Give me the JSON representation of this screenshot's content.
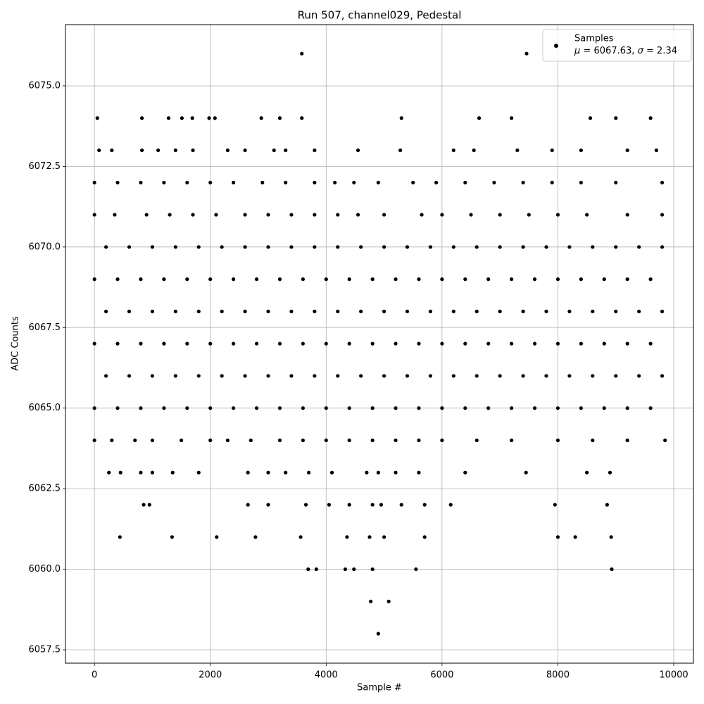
{
  "chart_data": {
    "type": "scatter",
    "title": "Run 507, channel029, Pedestal",
    "x_label": "Sample #",
    "y_label": "ADC Counts",
    "legend_stats": "μ = 6067.63, σ = 2.34",
    "legend_position": "upper right",
    "grid": true,
    "xlim": [
      -500,
      10340
    ],
    "ylim": [
      6057.085,
      6076.9
    ],
    "xticks": [
      0,
      2000,
      4000,
      6000,
      8000,
      10000
    ],
    "yticks": [
      6057.5,
      {
        "value": 6060,
        "label": "6060.0"
      },
      6062.5,
      {
        "value": 6065,
        "label": "6065.0"
      },
      6067.5,
      {
        "value": 6070,
        "label": "6070.0"
      },
      6072.5,
      {
        "value": 6075,
        "label": "6075.0"
      }
    ],
    "series": [
      {
        "name": "Samples",
        "color": "#000000",
        "x": [
          3580,
          7460,
          50,
          820,
          1280,
          1510,
          1690,
          1980,
          2080,
          2880,
          3200,
          3580,
          5300,
          6640,
          7200,
          8560,
          9000,
          9600,
          80,
          300,
          820,
          1100,
          1400,
          1700,
          2300,
          2600,
          3100,
          3300,
          3800,
          4550,
          5280,
          6200,
          6550,
          7300,
          7900,
          8400,
          9200,
          9700,
          0,
          400,
          800,
          1200,
          1600,
          2000,
          2400,
          2900,
          3300,
          3800,
          4150,
          4480,
          4900,
          5500,
          5900,
          6400,
          6900,
          7400,
          7900,
          8400,
          9000,
          9800,
          0,
          350,
          900,
          1300,
          1700,
          2100,
          2600,
          3000,
          3400,
          3800,
          4200,
          4550,
          5000,
          5650,
          6000,
          6500,
          7000,
          7500,
          8000,
          8500,
          9200,
          9800,
          200,
          600,
          1000,
          1400,
          1800,
          2200,
          2600,
          3000,
          3400,
          3800,
          4200,
          4600,
          5000,
          5400,
          5800,
          6200,
          6600,
          7000,
          7400,
          7800,
          8200,
          8600,
          9000,
          9400,
          9800,
          0,
          400,
          800,
          1200,
          1600,
          2000,
          2400,
          2800,
          3200,
          3600,
          4000,
          4400,
          4800,
          5200,
          5600,
          6000,
          6400,
          6800,
          7200,
          7600,
          8000,
          8400,
          8800,
          9200,
          9600,
          200,
          600,
          1000,
          1400,
          1800,
          2200,
          2600,
          3000,
          3400,
          3800,
          4200,
          4600,
          5000,
          5400,
          5800,
          6200,
          6600,
          7000,
          7400,
          7800,
          8200,
          8600,
          9000,
          9400,
          9800,
          0,
          400,
          800,
          1200,
          1600,
          2000,
          2400,
          2800,
          3200,
          3600,
          4000,
          4400,
          4800,
          5200,
          5600,
          6000,
          6400,
          6800,
          7200,
          7600,
          8000,
          8400,
          8800,
          9200,
          9600,
          200,
          600,
          1000,
          1400,
          1800,
          2200,
          2600,
          3000,
          3400,
          3800,
          4200,
          4600,
          5000,
          5400,
          5800,
          6200,
          6600,
          7000,
          7400,
          7800,
          8200,
          8600,
          9000,
          9400,
          9800,
          0,
          400,
          800,
          1200,
          1600,
          2000,
          2400,
          2800,
          3200,
          3600,
          4000,
          4400,
          4800,
          5200,
          5600,
          6000,
          6400,
          6800,
          7200,
          7600,
          8000,
          8400,
          8800,
          9200,
          9600,
          0,
          300,
          700,
          1000,
          1500,
          2000,
          2300,
          2700,
          3200,
          3600,
          4000,
          4400,
          4800,
          5200,
          5600,
          6000,
          6600,
          7200,
          8000,
          8600,
          9200,
          9850,
          250,
          450,
          800,
          1000,
          1350,
          1800,
          2650,
          3000,
          3300,
          3700,
          4100,
          4700,
          4900,
          5200,
          5600,
          6400,
          7450,
          8500,
          8900,
          850,
          950,
          2650,
          3000,
          3650,
          4050,
          4400,
          4800,
          4950,
          5300,
          5700,
          6150,
          7950,
          8850,
          440,
          1340,
          2110,
          2780,
          3560,
          4360,
          4750,
          5000,
          5700,
          8000,
          8300,
          8920,
          3690,
          3830,
          4330,
          4480,
          4800,
          5550,
          8930,
          4770,
          5080,
          4900
        ],
        "values": [
          6076,
          6076,
          6074,
          6074,
          6074,
          6074,
          6074,
          6074,
          6074,
          6074,
          6074,
          6074,
          6074,
          6074,
          6074,
          6074,
          6074,
          6074,
          6073,
          6073,
          6073,
          6073,
          6073,
          6073,
          6073,
          6073,
          6073,
          6073,
          6073,
          6073,
          6073,
          6073,
          6073,
          6073,
          6073,
          6073,
          6073,
          6073,
          6072,
          6072,
          6072,
          6072,
          6072,
          6072,
          6072,
          6072,
          6072,
          6072,
          6072,
          6072,
          6072,
          6072,
          6072,
          6072,
          6072,
          6072,
          6072,
          6072,
          6072,
          6072,
          6071,
          6071,
          6071,
          6071,
          6071,
          6071,
          6071,
          6071,
          6071,
          6071,
          6071,
          6071,
          6071,
          6071,
          6071,
          6071,
          6071,
          6071,
          6071,
          6071,
          6071,
          6071,
          6070,
          6070,
          6070,
          6070,
          6070,
          6070,
          6070,
          6070,
          6070,
          6070,
          6070,
          6070,
          6070,
          6070,
          6070,
          6070,
          6070,
          6070,
          6070,
          6070,
          6070,
          6070,
          6070,
          6070,
          6070,
          6069,
          6069,
          6069,
          6069,
          6069,
          6069,
          6069,
          6069,
          6069,
          6069,
          6069,
          6069,
          6069,
          6069,
          6069,
          6069,
          6069,
          6069,
          6069,
          6069,
          6069,
          6069,
          6069,
          6069,
          6069,
          6068,
          6068,
          6068,
          6068,
          6068,
          6068,
          6068,
          6068,
          6068,
          6068,
          6068,
          6068,
          6068,
          6068,
          6068,
          6068,
          6068,
          6068,
          6068,
          6068,
          6068,
          6068,
          6068,
          6068,
          6068,
          6067,
          6067,
          6067,
          6067,
          6067,
          6067,
          6067,
          6067,
          6067,
          6067,
          6067,
          6067,
          6067,
          6067,
          6067,
          6067,
          6067,
          6067,
          6067,
          6067,
          6067,
          6067,
          6067,
          6067,
          6067,
          6066,
          6066,
          6066,
          6066,
          6066,
          6066,
          6066,
          6066,
          6066,
          6066,
          6066,
          6066,
          6066,
          6066,
          6066,
          6066,
          6066,
          6066,
          6066,
          6066,
          6066,
          6066,
          6066,
          6066,
          6066,
          6065,
          6065,
          6065,
          6065,
          6065,
          6065,
          6065,
          6065,
          6065,
          6065,
          6065,
          6065,
          6065,
          6065,
          6065,
          6065,
          6065,
          6065,
          6065,
          6065,
          6065,
          6065,
          6065,
          6065,
          6065,
          6064,
          6064,
          6064,
          6064,
          6064,
          6064,
          6064,
          6064,
          6064,
          6064,
          6064,
          6064,
          6064,
          6064,
          6064,
          6064,
          6064,
          6064,
          6064,
          6064,
          6064,
          6064,
          6063,
          6063,
          6063,
          6063,
          6063,
          6063,
          6063,
          6063,
          6063,
          6063,
          6063,
          6063,
          6063,
          6063,
          6063,
          6063,
          6063,
          6063,
          6063,
          6062,
          6062,
          6062,
          6062,
          6062,
          6062,
          6062,
          6062,
          6062,
          6062,
          6062,
          6062,
          6062,
          6062,
          6061,
          6061,
          6061,
          6061,
          6061,
          6061,
          6061,
          6061,
          6061,
          6061,
          6061,
          6061,
          6060,
          6060,
          6060,
          6060,
          6060,
          6060,
          6060,
          6059,
          6059,
          6058
        ]
      }
    ]
  }
}
